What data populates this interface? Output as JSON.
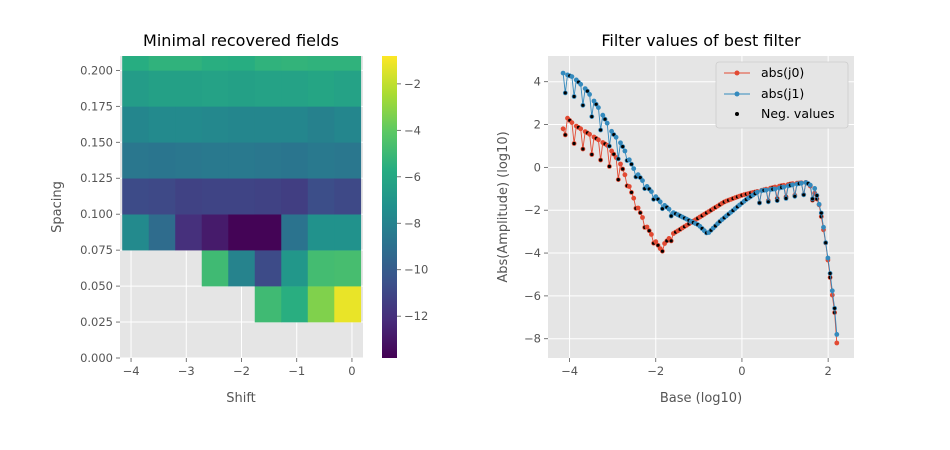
{
  "chart_data": [
    {
      "type": "heatmap",
      "title": "Minimal recovered fields",
      "xlabel": "Shift",
      "ylabel": "Spacing",
      "xlim": [
        -4.2,
        0.2
      ],
      "ylim": [
        0.0,
        0.21
      ],
      "x_ticks": [
        "−4",
        "−3",
        "−2",
        "−1",
        "0"
      ],
      "y_ticks": [
        "0.000",
        "0.025",
        "0.050",
        "0.075",
        "0.100",
        "0.125",
        "0.150",
        "0.175",
        "0.200"
      ],
      "colorbar": {
        "min": -13.8,
        "max": -0.8,
        "ticks": [
          "−2",
          "−4",
          "−6",
          "−8",
          "−10",
          "−12"
        ],
        "colormap": "viridis"
      },
      "grid": true,
      "x_centers": [
        -3.92,
        -3.44,
        -2.96,
        -2.48,
        -2.0,
        -1.52,
        -1.04,
        -0.56,
        -0.08
      ],
      "rows": [
        {
          "y_range": [
            0.0,
            0.025
          ],
          "values": [
            null,
            null,
            null,
            null,
            null,
            null,
            null,
            null,
            null
          ]
        },
        {
          "y_range": [
            0.025,
            0.05
          ],
          "values": [
            null,
            null,
            null,
            null,
            null,
            -4.9,
            -5.6,
            -3.3,
            -1.2
          ]
        },
        {
          "y_range": [
            0.05,
            0.075
          ],
          "values": [
            null,
            null,
            null,
            -4.9,
            -8.0,
            -10.8,
            -6.9,
            -4.8,
            -4.7
          ]
        },
        {
          "y_range": [
            0.075,
            0.1
          ],
          "values": [
            -7.6,
            -9.2,
            -12.0,
            -12.8,
            -13.7,
            -13.7,
            -8.8,
            -7.2,
            -7.2
          ]
        },
        {
          "y_range": [
            0.1,
            0.125
          ],
          "values": [
            -10.8,
            -10.9,
            -11.2,
            -11.1,
            -11.1,
            -11.2,
            -11.4,
            -10.7,
            -10.9
          ]
        },
        {
          "y_range": [
            0.125,
            0.15
          ],
          "values": [
            -8.6,
            -8.7,
            -8.6,
            -8.5,
            -8.5,
            -8.6,
            -8.7,
            -8.5,
            -8.6
          ]
        },
        {
          "y_range": [
            0.15,
            0.175
          ],
          "values": [
            -7.8,
            -7.6,
            -7.6,
            -7.7,
            -7.8,
            -7.8,
            -7.8,
            -8.1,
            -7.8
          ]
        },
        {
          "y_range": [
            0.175,
            0.2
          ],
          "values": [
            -6.6,
            -6.4,
            -6.4,
            -6.3,
            -6.4,
            -6.3,
            -6.3,
            -6.1,
            -6.3
          ]
        },
        {
          "y_range": [
            0.2,
            0.21
          ],
          "values": [
            -5.7,
            -5.4,
            -5.4,
            -5.6,
            -5.7,
            -5.4,
            -5.3,
            -5.4,
            -5.4
          ]
        }
      ]
    },
    {
      "type": "line",
      "title": "Filter values of best filter",
      "xlabel": "Base (log10)",
      "ylabel": "Abs(Amplitude) (log10)",
      "xlim": [
        -4.5,
        2.6
      ],
      "ylim": [
        -8.9,
        5.2
      ],
      "x_ticks": [
        "−4",
        "−2",
        "0",
        "2"
      ],
      "y_ticks": [
        "4",
        "2",
        "0",
        "−2",
        "−4",
        "−6",
        "−8"
      ],
      "grid": true,
      "legend_position": "top-right",
      "series": [
        {
          "name": "abs(j0)",
          "color": "#E24A33",
          "x_range": [
            -4.15,
            2.2
          ],
          "keypoints": [
            [
              -4.15,
              1.8
            ],
            [
              -4.1,
              2.4
            ],
            [
              -3.9,
              2.0
            ],
            [
              -3.5,
              1.5
            ],
            [
              -3.1,
              1.0
            ],
            [
              -2.8,
              0.1
            ],
            [
              -2.5,
              -1.5
            ],
            [
              -2.2,
              -2.8
            ],
            [
              -1.9,
              -3.8
            ],
            [
              -1.6,
              -3.1
            ],
            [
              -1.2,
              -2.6
            ],
            [
              -0.8,
              -2.1
            ],
            [
              -0.4,
              -1.6
            ],
            [
              0.0,
              -1.3
            ],
            [
              0.4,
              -1.1
            ],
            [
              0.8,
              -0.9
            ],
            [
              1.2,
              -0.75
            ],
            [
              1.5,
              -0.7
            ],
            [
              1.65,
              -1.0
            ],
            [
              1.8,
              -1.8
            ],
            [
              1.95,
              -3.6
            ],
            [
              2.05,
              -5.2
            ],
            [
              2.15,
              -6.8
            ],
            [
              2.2,
              -8.2
            ]
          ]
        },
        {
          "name": "abs(j1)",
          "color": "#348ABD",
          "x_range": [
            -4.15,
            2.2
          ],
          "keypoints": [
            [
              -4.15,
              4.4
            ],
            [
              -3.9,
              4.2
            ],
            [
              -3.6,
              3.6
            ],
            [
              -3.3,
              2.7
            ],
            [
              -3.0,
              1.6
            ],
            [
              -2.8,
              1.1
            ],
            [
              -2.5,
              -0.1
            ],
            [
              -2.2,
              -0.9
            ],
            [
              -1.9,
              -1.6
            ],
            [
              -1.6,
              -2.1
            ],
            [
              -1.3,
              -2.4
            ],
            [
              -1.0,
              -2.7
            ],
            [
              -0.8,
              -3.1
            ],
            [
              -0.5,
              -2.5
            ],
            [
              -0.2,
              -2.0
            ],
            [
              0.1,
              -1.5
            ],
            [
              0.4,
              -1.1
            ],
            [
              0.8,
              -1.0
            ],
            [
              1.2,
              -0.8
            ],
            [
              1.5,
              -0.7
            ],
            [
              1.7,
              -1.0
            ],
            [
              1.85,
              -2.2
            ],
            [
              1.95,
              -3.6
            ],
            [
              2.05,
              -5.0
            ],
            [
              2.15,
              -6.6
            ],
            [
              2.2,
              -7.8
            ]
          ]
        },
        {
          "name": "Neg. values",
          "color": "#000000",
          "marker_only": true
        }
      ]
    }
  ]
}
